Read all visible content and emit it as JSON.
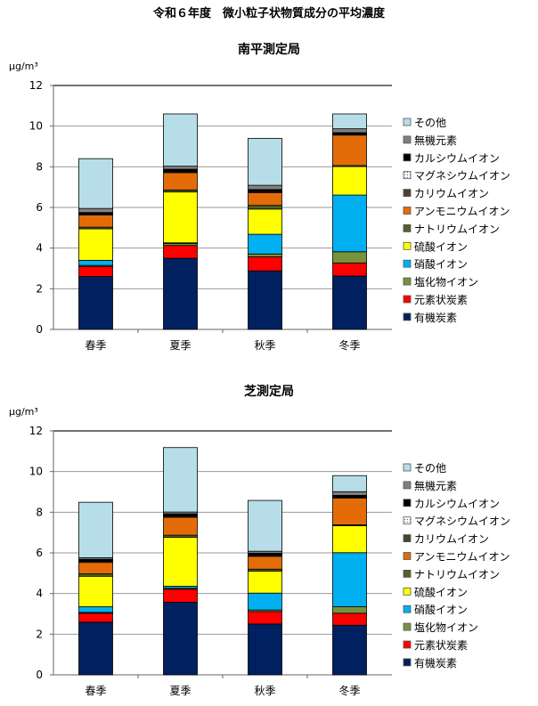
{
  "title": "令和６年度　微小粒子状物質成分の平均濃度",
  "chart_data": [
    {
      "type": "bar",
      "stacked": true,
      "title": "南平測定局",
      "ylabel": "μg/m³",
      "ylim": [
        0,
        12
      ],
      "yticks": [
        0,
        2,
        4,
        6,
        8,
        10,
        12
      ],
      "grid": true,
      "legend_position": "right",
      "categories": [
        "春季",
        "夏季",
        "秋季",
        "冬季"
      ],
      "series": [
        {
          "name": "有機炭素",
          "color": "#002060",
          "values": [
            2.6,
            3.5,
            2.88,
            2.63
          ]
        },
        {
          "name": "元素状炭素",
          "color": "#FF0000",
          "values": [
            0.5,
            0.63,
            0.69,
            0.64
          ]
        },
        {
          "name": "塩化物イオン",
          "color": "#77933C",
          "values": [
            0.05,
            0.1,
            0.14,
            0.55
          ]
        },
        {
          "name": "硝酸イオン",
          "color": "#00B0F0",
          "values": [
            0.25,
            0.03,
            0.97,
            2.79
          ]
        },
        {
          "name": "硫酸イオン",
          "color": "#FFFF00",
          "values": [
            1.55,
            2.5,
            1.24,
            1.4
          ]
        },
        {
          "name": "ナトリウムイオン",
          "color": "#4F6228",
          "values": [
            0.08,
            0.1,
            0.18,
            0.05
          ]
        },
        {
          "name": "アンモニウムイオン",
          "color": "#E36C09",
          "values": [
            0.6,
            0.85,
            0.63,
            1.5
          ]
        },
        {
          "name": "カリウムイオン",
          "color": "#494429",
          "values": [
            0.05,
            0.05,
            0.05,
            0.03
          ]
        },
        {
          "name": "マグネシウムイオン",
          "color": "#FFFFFF",
          "values": [
            0.02,
            0.02,
            0.02,
            0.02
          ]
        },
        {
          "name": "カルシウムイオン",
          "color": "#000000",
          "values": [
            0.05,
            0.1,
            0.08,
            0.07
          ]
        },
        {
          "name": "無機元素",
          "color": "#808080",
          "values": [
            0.2,
            0.15,
            0.21,
            0.19
          ]
        },
        {
          "name": "その他",
          "color": "#B7DEE8",
          "values": [
            2.45,
            2.57,
            2.31,
            0.73
          ]
        }
      ]
    },
    {
      "type": "bar",
      "stacked": true,
      "title": "芝測定局",
      "ylabel": "μg/m³",
      "ylim": [
        0,
        12
      ],
      "yticks": [
        0,
        2,
        4,
        6,
        8,
        10,
        12
      ],
      "grid": true,
      "legend_position": "right",
      "categories": [
        "春季",
        "夏季",
        "秋季",
        "冬季"
      ],
      "series": [
        {
          "name": "有機炭素",
          "color": "#002060",
          "values": [
            2.59,
            3.57,
            2.5,
            2.44
          ]
        },
        {
          "name": "元素状炭素",
          "color": "#FF0000",
          "values": [
            0.44,
            0.64,
            0.61,
            0.59
          ]
        },
        {
          "name": "塩化物イオン",
          "color": "#77933C",
          "values": [
            0.04,
            0.05,
            0.08,
            0.32
          ]
        },
        {
          "name": "硝酸イオン",
          "color": "#00B0F0",
          "values": [
            0.28,
            0.1,
            0.83,
            2.66
          ]
        },
        {
          "name": "硫酸イオン",
          "color": "#FFFF00",
          "values": [
            1.5,
            2.41,
            1.08,
            1.33
          ]
        },
        {
          "name": "ナトリウムイオン",
          "color": "#4F6228",
          "values": [
            0.12,
            0.1,
            0.1,
            0.04
          ]
        },
        {
          "name": "アンモニウムイオン",
          "color": "#E36C09",
          "values": [
            0.56,
            0.88,
            0.63,
            1.32
          ]
        },
        {
          "name": "カリウムイオン",
          "color": "#494429",
          "values": [
            0.05,
            0.05,
            0.05,
            0.03
          ]
        },
        {
          "name": "マグネシウムイオン",
          "color": "#FFFFFF",
          "values": [
            0.02,
            0.02,
            0.02,
            0.02
          ]
        },
        {
          "name": "カルシウムイオン",
          "color": "#000000",
          "values": [
            0.08,
            0.1,
            0.08,
            0.08
          ]
        },
        {
          "name": "無機元素",
          "color": "#808080",
          "values": [
            0.08,
            0.09,
            0.1,
            0.18
          ]
        },
        {
          "name": "その他",
          "color": "#B7DEE8",
          "values": [
            2.73,
            3.17,
            2.5,
            0.79
          ]
        }
      ]
    }
  ]
}
